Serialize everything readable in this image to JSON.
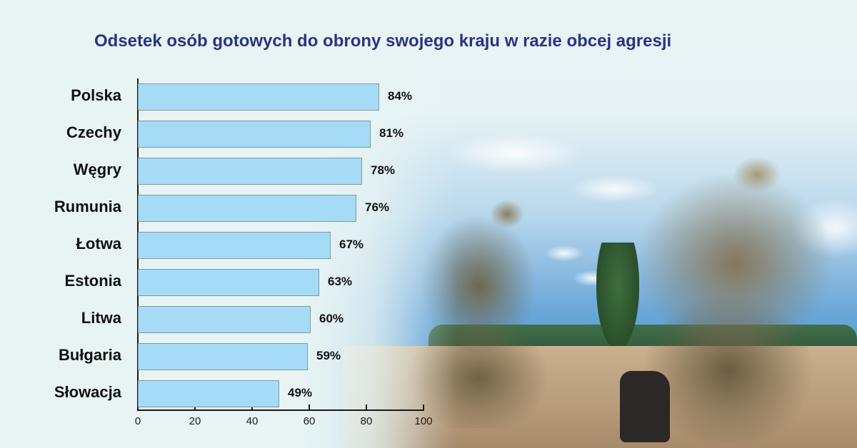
{
  "title": "Odsetek osób gotowych do obrony swojego kraju w razie obcej agresji",
  "colors": {
    "title": "#2b3286",
    "bar_fill": "#a6dbf6",
    "bar_border": "#7f98a6",
    "text": "#111111",
    "background": "#e8f4f4"
  },
  "background_image": "soldiers-kneeling-in-field-photo",
  "chart_data": {
    "type": "bar",
    "orientation": "horizontal",
    "title": "Odsetek osób gotowych do obrony swojego kraju w razie obcej agresji",
    "categories": [
      "Polska",
      "Czechy",
      "Węgry",
      "Rumunia",
      "Łotwa",
      "Estonia",
      "Litwa",
      "Bułgaria",
      "Słowacja"
    ],
    "values": [
      84,
      81,
      78,
      76,
      67,
      63,
      60,
      59,
      49
    ],
    "value_labels": [
      "84%",
      "81%",
      "78%",
      "76%",
      "67%",
      "63%",
      "60%",
      "59%",
      "49%"
    ],
    "xlabel": "",
    "ylabel": "",
    "xlim": [
      0,
      100
    ],
    "x_ticks": [
      0,
      20,
      40,
      60,
      80,
      100
    ],
    "x_tick_labels": [
      "0",
      "20",
      "40",
      "60",
      "80",
      "100"
    ],
    "grid": false,
    "legend": null
  }
}
